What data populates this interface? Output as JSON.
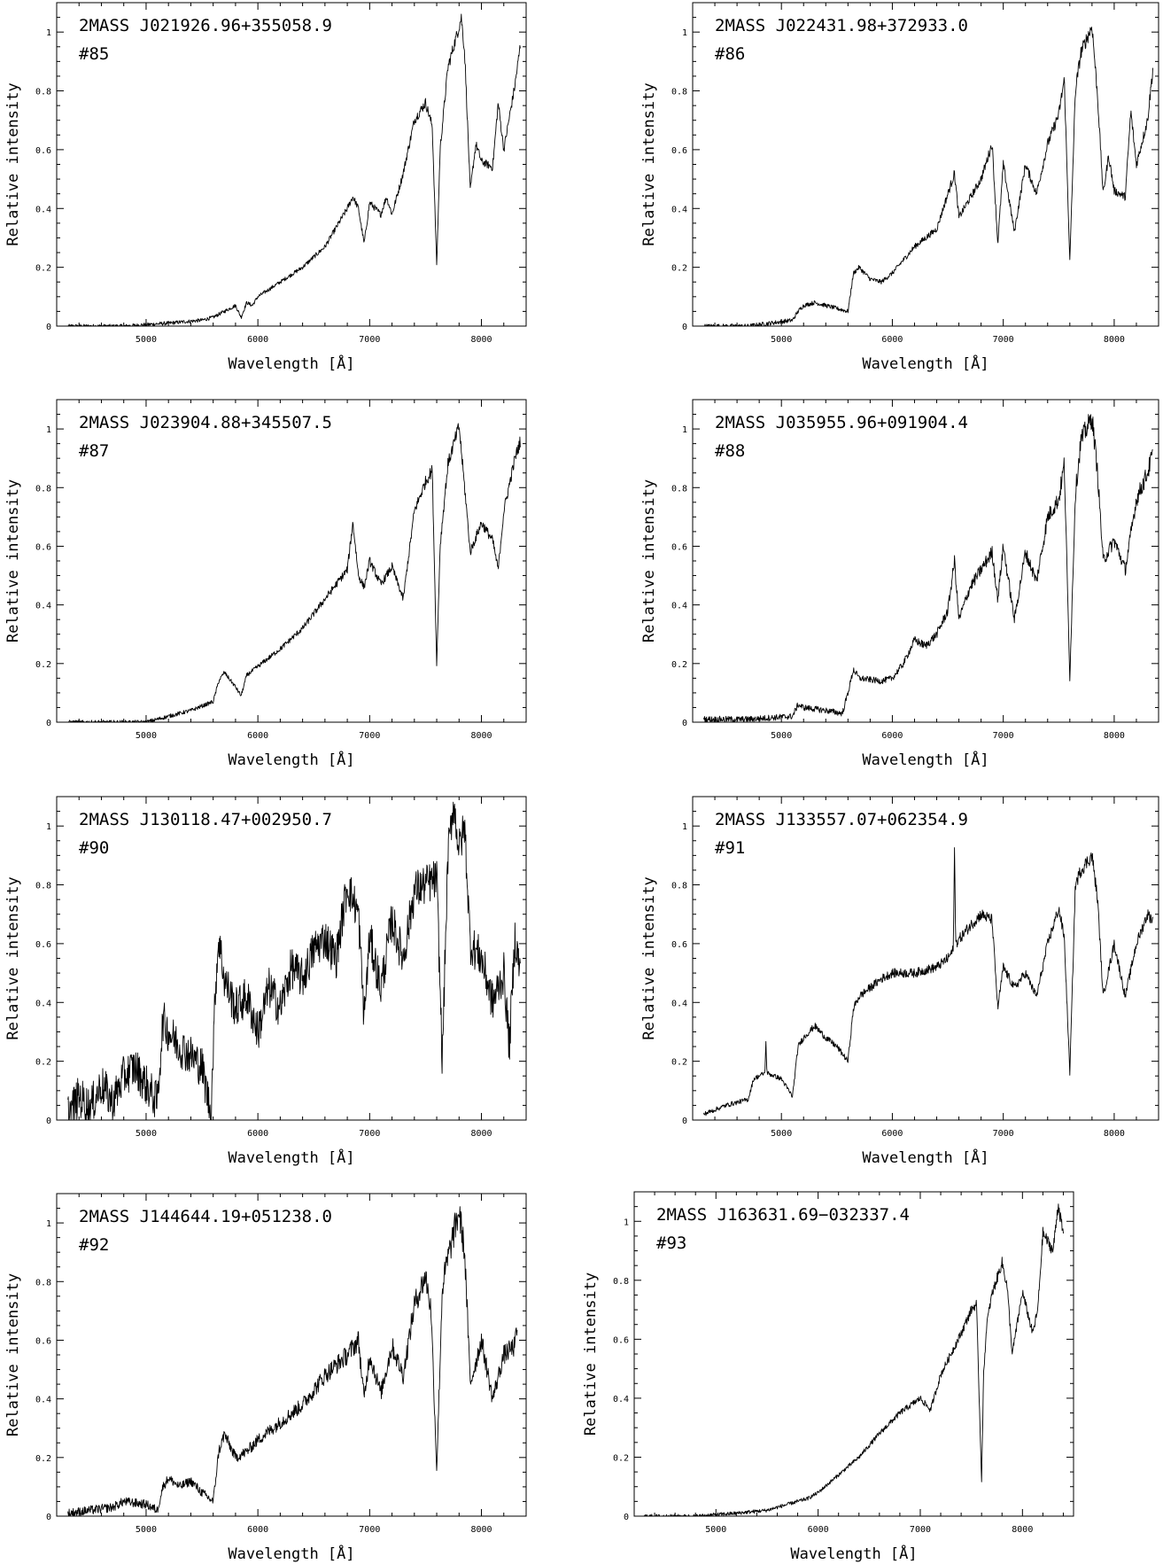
{
  "figure": {
    "panels": [
      {
        "name": "2MASS  J021926.96+355058.9",
        "label": "#85"
      },
      {
        "name": "2MASS  J022431.98+372933.0",
        "label": "#86"
      },
      {
        "name": "2MASS  J023904.88+345507.5",
        "label": "#87"
      },
      {
        "name": "2MASS  J035955.96+091904.4",
        "label": "#88"
      },
      {
        "name": "2MASS  J130118.47+002950.7",
        "label": "#90"
      },
      {
        "name": "2MASS  J133557.07+062354.9",
        "label": "#91"
      },
      {
        "name": "2MASS  J144644.19+051238.0",
        "label": "#92"
      },
      {
        "name": "2MASS  J163631.69−032337.4",
        "label": "#93"
      }
    ]
  },
  "chart_data": [
    {
      "type": "line",
      "title": "2MASS  J021926.96+355058.9",
      "subtitle": "#85",
      "xlabel": "Wavelength    [Å]",
      "ylabel": "Relative intensity",
      "xlim": [
        4200,
        8400
      ],
      "ylim": [
        0,
        1.1
      ],
      "xticks": [
        5000,
        6000,
        7000,
        8000
      ],
      "yticks": [
        0,
        0.2,
        0.4,
        0.6,
        0.8,
        1
      ],
      "ytick_labels": [
        "0",
        "0.2",
        "0.4",
        "0.6",
        "0.8",
        "1"
      ],
      "grid": false,
      "series": [
        {
          "x": [
            4300,
            4800,
            5200,
            5500,
            5600,
            5700,
            5800,
            5850,
            5900,
            5950,
            6000,
            6200,
            6400,
            6600,
            6800,
            6850,
            6900,
            6950,
            7000,
            7100,
            7150,
            7200,
            7300,
            7400,
            7500,
            7560,
            7600,
            7630,
            7700,
            7780,
            7820,
            7850,
            7900,
            7950,
            8000,
            8100,
            8150,
            8200,
            8300,
            8350
          ],
          "y": [
            0.0,
            0.0,
            0.01,
            0.02,
            0.03,
            0.05,
            0.07,
            0.03,
            0.08,
            0.07,
            0.1,
            0.15,
            0.2,
            0.27,
            0.4,
            0.44,
            0.4,
            0.28,
            0.42,
            0.38,
            0.44,
            0.38,
            0.52,
            0.7,
            0.76,
            0.68,
            0.21,
            0.6,
            0.88,
            0.99,
            1.05,
            0.93,
            0.46,
            0.62,
            0.56,
            0.54,
            0.76,
            0.6,
            0.82,
            0.96
          ]
        }
      ]
    },
    {
      "type": "line",
      "title": "2MASS  J022431.98+372933.0",
      "subtitle": "#86",
      "xlabel": "Wavelength    [Å]",
      "ylabel": "Relative intensity",
      "xlim": [
        4200,
        8400
      ],
      "ylim": [
        0,
        1.1
      ],
      "xticks": [
        5000,
        6000,
        7000,
        8000
      ],
      "yticks": [
        0,
        0.2,
        0.4,
        0.6,
        0.8,
        1
      ],
      "ytick_labels": [
        "0",
        "0.2",
        "0.4",
        "0.6",
        "0.8",
        "1"
      ],
      "grid": false,
      "series": [
        {
          "x": [
            4300,
            4700,
            5100,
            5150,
            5200,
            5300,
            5500,
            5600,
            5650,
            5700,
            5800,
            5900,
            6000,
            6200,
            6400,
            6560,
            6600,
            6800,
            6900,
            6950,
            7000,
            7100,
            7200,
            7300,
            7400,
            7500,
            7550,
            7600,
            7650,
            7700,
            7800,
            7850,
            7900,
            7950,
            8000,
            8100,
            8150,
            8200,
            8300,
            8350
          ],
          "y": [
            0.0,
            0.0,
            0.02,
            0.05,
            0.07,
            0.08,
            0.06,
            0.05,
            0.18,
            0.2,
            0.16,
            0.15,
            0.18,
            0.27,
            0.33,
            0.52,
            0.37,
            0.5,
            0.62,
            0.28,
            0.55,
            0.32,
            0.55,
            0.45,
            0.62,
            0.72,
            0.84,
            0.22,
            0.8,
            0.93,
            1.02,
            0.78,
            0.45,
            0.58,
            0.46,
            0.44,
            0.73,
            0.55,
            0.7,
            0.88
          ]
        }
      ]
    },
    {
      "type": "line",
      "title": "2MASS  J023904.88+345507.5",
      "subtitle": "#87",
      "xlabel": "Wavelength    [Å]",
      "ylabel": "Relative intensity",
      "xlim": [
        4200,
        8400
      ],
      "ylim": [
        0,
        1.1
      ],
      "xticks": [
        5000,
        6000,
        7000,
        8000
      ],
      "yticks": [
        0,
        0.2,
        0.4,
        0.6,
        0.8,
        1
      ],
      "ytick_labels": [
        "0",
        "0.2",
        "0.4",
        "0.6",
        "0.8",
        "1"
      ],
      "grid": false,
      "series": [
        {
          "x": [
            4300,
            4800,
            5000,
            5200,
            5400,
            5600,
            5650,
            5700,
            5800,
            5850,
            5900,
            6000,
            6200,
            6400,
            6600,
            6800,
            6850,
            6900,
            6950,
            7000,
            7100,
            7200,
            7300,
            7400,
            7500,
            7560,
            7600,
            7630,
            7700,
            7800,
            7850,
            7900,
            8000,
            8100,
            8150,
            8200,
            8300,
            8350
          ],
          "y": [
            0.0,
            0.0,
            0.0,
            0.02,
            0.04,
            0.07,
            0.14,
            0.17,
            0.12,
            0.09,
            0.16,
            0.19,
            0.25,
            0.32,
            0.42,
            0.52,
            0.68,
            0.5,
            0.46,
            0.55,
            0.47,
            0.53,
            0.42,
            0.72,
            0.82,
            0.86,
            0.2,
            0.6,
            0.88,
            1.01,
            0.8,
            0.58,
            0.68,
            0.62,
            0.52,
            0.72,
            0.9,
            0.96
          ]
        }
      ]
    },
    {
      "type": "line",
      "title": "2MASS  J035955.96+091904.4",
      "subtitle": "#88",
      "xlabel": "Wavelength    [Å]",
      "ylabel": "Relative intensity",
      "xlim": [
        4200,
        8400
      ],
      "ylim": [
        0,
        1.1
      ],
      "xticks": [
        5000,
        6000,
        7000,
        8000
      ],
      "yticks": [
        0,
        0.2,
        0.4,
        0.6,
        0.8,
        1
      ],
      "ytick_labels": [
        "0",
        "0.2",
        "0.4",
        "0.6",
        "0.8",
        "1"
      ],
      "grid": false,
      "series": [
        {
          "x": [
            4300,
            4700,
            5100,
            5150,
            5200,
            5400,
            5550,
            5600,
            5650,
            5700,
            5900,
            6000,
            6100,
            6200,
            6300,
            6400,
            6500,
            6560,
            6600,
            6700,
            6800,
            6900,
            6950,
            7000,
            7100,
            7200,
            7300,
            7400,
            7500,
            7550,
            7600,
            7650,
            7700,
            7800,
            7850,
            7900,
            8000,
            8100,
            8200,
            8300,
            8350
          ],
          "y": [
            0.01,
            0.01,
            0.02,
            0.06,
            0.05,
            0.04,
            0.03,
            0.1,
            0.18,
            0.15,
            0.14,
            0.15,
            0.2,
            0.28,
            0.26,
            0.3,
            0.38,
            0.55,
            0.35,
            0.46,
            0.52,
            0.58,
            0.42,
            0.6,
            0.35,
            0.58,
            0.48,
            0.7,
            0.76,
            0.88,
            0.15,
            0.78,
            0.96,
            1.04,
            0.85,
            0.55,
            0.62,
            0.52,
            0.76,
            0.85,
            0.92
          ]
        }
      ]
    },
    {
      "type": "line",
      "title": "2MASS  J130118.47+002950.7",
      "subtitle": "#90",
      "xlabel": "Wavelength    [Å]",
      "ylabel": "Relative intensity",
      "xlim": [
        4200,
        8400
      ],
      "ylim": [
        0,
        1.1
      ],
      "xticks": [
        5000,
        6000,
        7000,
        8000
      ],
      "yticks": [
        0,
        0.2,
        0.4,
        0.6,
        0.8,
        1
      ],
      "ytick_labels": [
        "0",
        "0.2",
        "0.4",
        "0.6",
        "0.8",
        "1"
      ],
      "grid": false,
      "series": [
        {
          "x": [
            4300,
            4400,
            4500,
            4600,
            4700,
            4800,
            4900,
            5000,
            5100,
            5150,
            5200,
            5300,
            5400,
            5500,
            5580,
            5620,
            5650,
            5700,
            5800,
            5900,
            6000,
            6100,
            6200,
            6300,
            6400,
            6500,
            6600,
            6700,
            6800,
            6900,
            6950,
            7000,
            7100,
            7200,
            7300,
            7400,
            7500,
            7600,
            7650,
            7700,
            7750,
            7800,
            7850,
            7900,
            8000,
            8100,
            8200,
            8250,
            8300,
            8350
          ],
          "y": [
            0.02,
            0.08,
            0.04,
            0.12,
            0.06,
            0.15,
            0.18,
            0.12,
            0.06,
            0.34,
            0.3,
            0.25,
            0.22,
            0.18,
            0.02,
            0.45,
            0.62,
            0.48,
            0.38,
            0.42,
            0.3,
            0.45,
            0.38,
            0.52,
            0.48,
            0.58,
            0.62,
            0.55,
            0.8,
            0.7,
            0.35,
            0.62,
            0.45,
            0.68,
            0.55,
            0.78,
            0.8,
            0.82,
            0.2,
            0.9,
            1.08,
            0.92,
            1.0,
            0.6,
            0.55,
            0.4,
            0.5,
            0.25,
            0.62,
            0.5
          ]
        }
      ]
    },
    {
      "type": "line",
      "title": "2MASS  J133557.07+062354.9",
      "subtitle": "#91",
      "xlabel": "Wavelength    [Å]",
      "ylabel": "Relative intensity",
      "xlim": [
        4200,
        8400
      ],
      "ylim": [
        0,
        1.1
      ],
      "xticks": [
        5000,
        6000,
        7000,
        8000
      ],
      "yticks": [
        0,
        0.2,
        0.4,
        0.6,
        0.8,
        1
      ],
      "ytick_labels": [
        "0",
        "0.2",
        "0.4",
        "0.6",
        "0.8",
        "1"
      ],
      "grid": false,
      "series": [
        {
          "x": [
            4300,
            4500,
            4700,
            4750,
            4850,
            4860,
            4870,
            5000,
            5100,
            5150,
            5200,
            5300,
            5400,
            5500,
            5600,
            5650,
            5700,
            5800,
            5900,
            6000,
            6200,
            6400,
            6500,
            6550,
            6560,
            6570,
            6700,
            6800,
            6900,
            6950,
            7000,
            7100,
            7200,
            7300,
            7400,
            7500,
            7550,
            7600,
            7650,
            7700,
            7800,
            7850,
            7900,
            8000,
            8100,
            8200,
            8300,
            8350
          ],
          "y": [
            0.02,
            0.05,
            0.07,
            0.14,
            0.16,
            0.26,
            0.16,
            0.14,
            0.08,
            0.25,
            0.28,
            0.32,
            0.28,
            0.25,
            0.2,
            0.38,
            0.42,
            0.45,
            0.48,
            0.5,
            0.5,
            0.52,
            0.55,
            0.58,
            0.95,
            0.6,
            0.66,
            0.7,
            0.68,
            0.38,
            0.52,
            0.45,
            0.5,
            0.42,
            0.6,
            0.72,
            0.62,
            0.16,
            0.8,
            0.85,
            0.9,
            0.75,
            0.42,
            0.6,
            0.42,
            0.6,
            0.7,
            0.68
          ]
        }
      ]
    },
    {
      "type": "line",
      "title": "2MASS  J144644.19+051238.0",
      "subtitle": "#92",
      "xlabel": "Wavelength    [Å]",
      "ylabel": "Relative intensity",
      "xlim": [
        4200,
        8400
      ],
      "ylim": [
        0,
        1.1
      ],
      "xticks": [
        5000,
        6000,
        7000,
        8000
      ],
      "yticks": [
        0,
        0.2,
        0.4,
        0.6,
        0.8,
        1
      ],
      "ytick_labels": [
        "0",
        "0.2",
        "0.4",
        "0.6",
        "0.8",
        "1"
      ],
      "grid": false,
      "series": [
        {
          "x": [
            4300,
            4500,
            4700,
            4800,
            5000,
            5100,
            5150,
            5200,
            5300,
            5400,
            5500,
            5600,
            5650,
            5700,
            5800,
            5900,
            6000,
            6200,
            6400,
            6600,
            6800,
            6900,
            6950,
            7000,
            7100,
            7200,
            7300,
            7400,
            7500,
            7550,
            7600,
            7650,
            7700,
            7800,
            7850,
            7900,
            8000,
            8100,
            8200,
            8300,
            8320
          ],
          "y": [
            0.01,
            0.02,
            0.03,
            0.05,
            0.04,
            0.02,
            0.1,
            0.13,
            0.1,
            0.12,
            0.08,
            0.05,
            0.22,
            0.28,
            0.2,
            0.22,
            0.26,
            0.32,
            0.38,
            0.48,
            0.55,
            0.6,
            0.4,
            0.55,
            0.42,
            0.58,
            0.48,
            0.72,
            0.82,
            0.7,
            0.16,
            0.78,
            0.88,
            1.04,
            0.9,
            0.45,
            0.6,
            0.4,
            0.55,
            0.58,
            0.65
          ]
        }
      ]
    },
    {
      "type": "line",
      "title": "2MASS  J163631.69−032337.4",
      "subtitle": "#93",
      "xlabel": "Wavelength    [Å]",
      "ylabel": "Relative intensity",
      "xlim": [
        4200,
        8500
      ],
      "ylim": [
        0,
        1.1
      ],
      "xticks": [
        5000,
        6000,
        7000,
        8000
      ],
      "yticks": [
        0,
        0.2,
        0.4,
        0.6,
        0.8,
        1
      ],
      "ytick_labels": [
        "0",
        "0.2",
        "0.4",
        "0.6",
        "0.8",
        "1"
      ],
      "grid": false,
      "series": [
        {
          "x": [
            4300,
            4800,
            5200,
            5500,
            5700,
            5900,
            6000,
            6200,
            6400,
            6600,
            6800,
            7000,
            7100,
            7200,
            7300,
            7400,
            7500,
            7550,
            7600,
            7620,
            7650,
            7700,
            7800,
            7850,
            7900,
            8000,
            8100,
            8150,
            8200,
            8300,
            8350,
            8400
          ],
          "y": [
            0.0,
            0.0,
            0.01,
            0.02,
            0.04,
            0.06,
            0.08,
            0.14,
            0.2,
            0.28,
            0.35,
            0.4,
            0.36,
            0.48,
            0.55,
            0.62,
            0.7,
            0.72,
            0.12,
            0.48,
            0.65,
            0.75,
            0.86,
            0.78,
            0.55,
            0.76,
            0.62,
            0.7,
            0.96,
            0.9,
            1.06,
            0.95
          ]
        }
      ]
    }
  ]
}
